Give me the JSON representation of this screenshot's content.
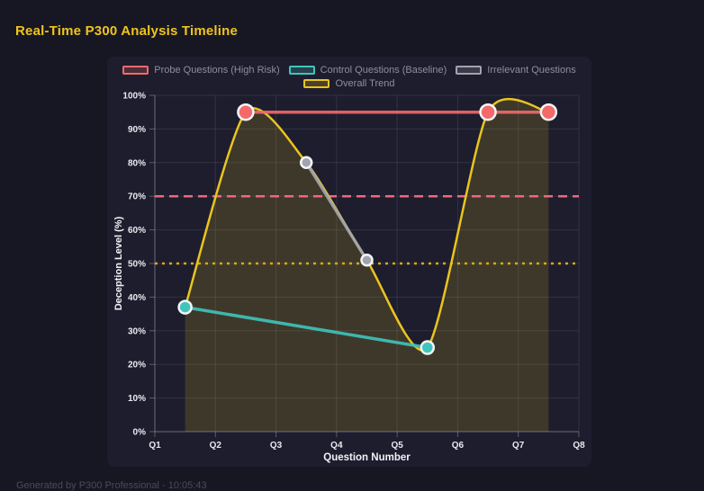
{
  "page": {
    "title": "Real-Time P300 Analysis Timeline",
    "footer": "Generated by P300 Professional - 10:05:43"
  },
  "colors": {
    "page_bg": "#171724",
    "panel_bg": "#1e1d2e",
    "title": "#f0c41d",
    "grid": "rgba(255,255,255,0.09)",
    "axis": "rgba(255,255,255,0.28)",
    "tick_label": "#e9eaef",
    "axis_title": "#f1f2f6",
    "legend_text": "#8e8e9a",
    "marker_ring": "#f4f5f7",
    "footer_text": "#4a4a58"
  },
  "chart_data": {
    "type": "line",
    "title": "Real-Time P300 Analysis Timeline",
    "xlabel": "Question Number",
    "ylabel": "Deception Level (%)",
    "x_tick_labels": [
      "Q1",
      "Q2",
      "Q3",
      "Q4",
      "Q5",
      "Q6",
      "Q7",
      "Q8"
    ],
    "x_range": [
      1,
      8
    ],
    "ylim": [
      0,
      100
    ],
    "y_tick_step": 10,
    "y_tick_suffix": "%",
    "grid": true,
    "legend_position": "top",
    "series": [
      {
        "name": "Probe Questions (High Risk)",
        "color": "#f26a6a",
        "points": [
          [
            2.5,
            95
          ],
          [
            6.5,
            95
          ],
          [
            7.5,
            95
          ]
        ],
        "line_width": 3.5,
        "point_radius": 8.5,
        "smooth": false,
        "fill": false
      },
      {
        "name": "Control Questions (Baseline)",
        "color": "#3fc5bb",
        "points": [
          [
            1.5,
            37
          ],
          [
            5.5,
            25
          ]
        ],
        "line_width": 3.5,
        "point_radius": 7,
        "smooth": false,
        "fill": false
      },
      {
        "name": "Irrelevant Questions",
        "color": "#a2a3ae",
        "points": [
          [
            3.5,
            80
          ],
          [
            4.5,
            51
          ]
        ],
        "line_width": 3.5,
        "point_radius": 6,
        "smooth": false,
        "fill": false
      },
      {
        "name": "Overall Trend",
        "color": "#e9c51e",
        "points": [
          [
            1.5,
            37
          ],
          [
            2.5,
            95
          ],
          [
            3.5,
            80
          ],
          [
            4.5,
            51
          ],
          [
            5.5,
            25
          ],
          [
            6.5,
            95
          ],
          [
            7.5,
            95
          ]
        ],
        "line_width": 2.5,
        "point_radius": 0,
        "smooth": true,
        "fill": true,
        "fill_color": "rgba(233,197,30,0.16)"
      }
    ],
    "thresholds": [
      {
        "y": 70,
        "color": "#f2667c",
        "style": "dashed"
      },
      {
        "y": 50,
        "color": "#d4ac10",
        "style": "dotted"
      }
    ]
  }
}
